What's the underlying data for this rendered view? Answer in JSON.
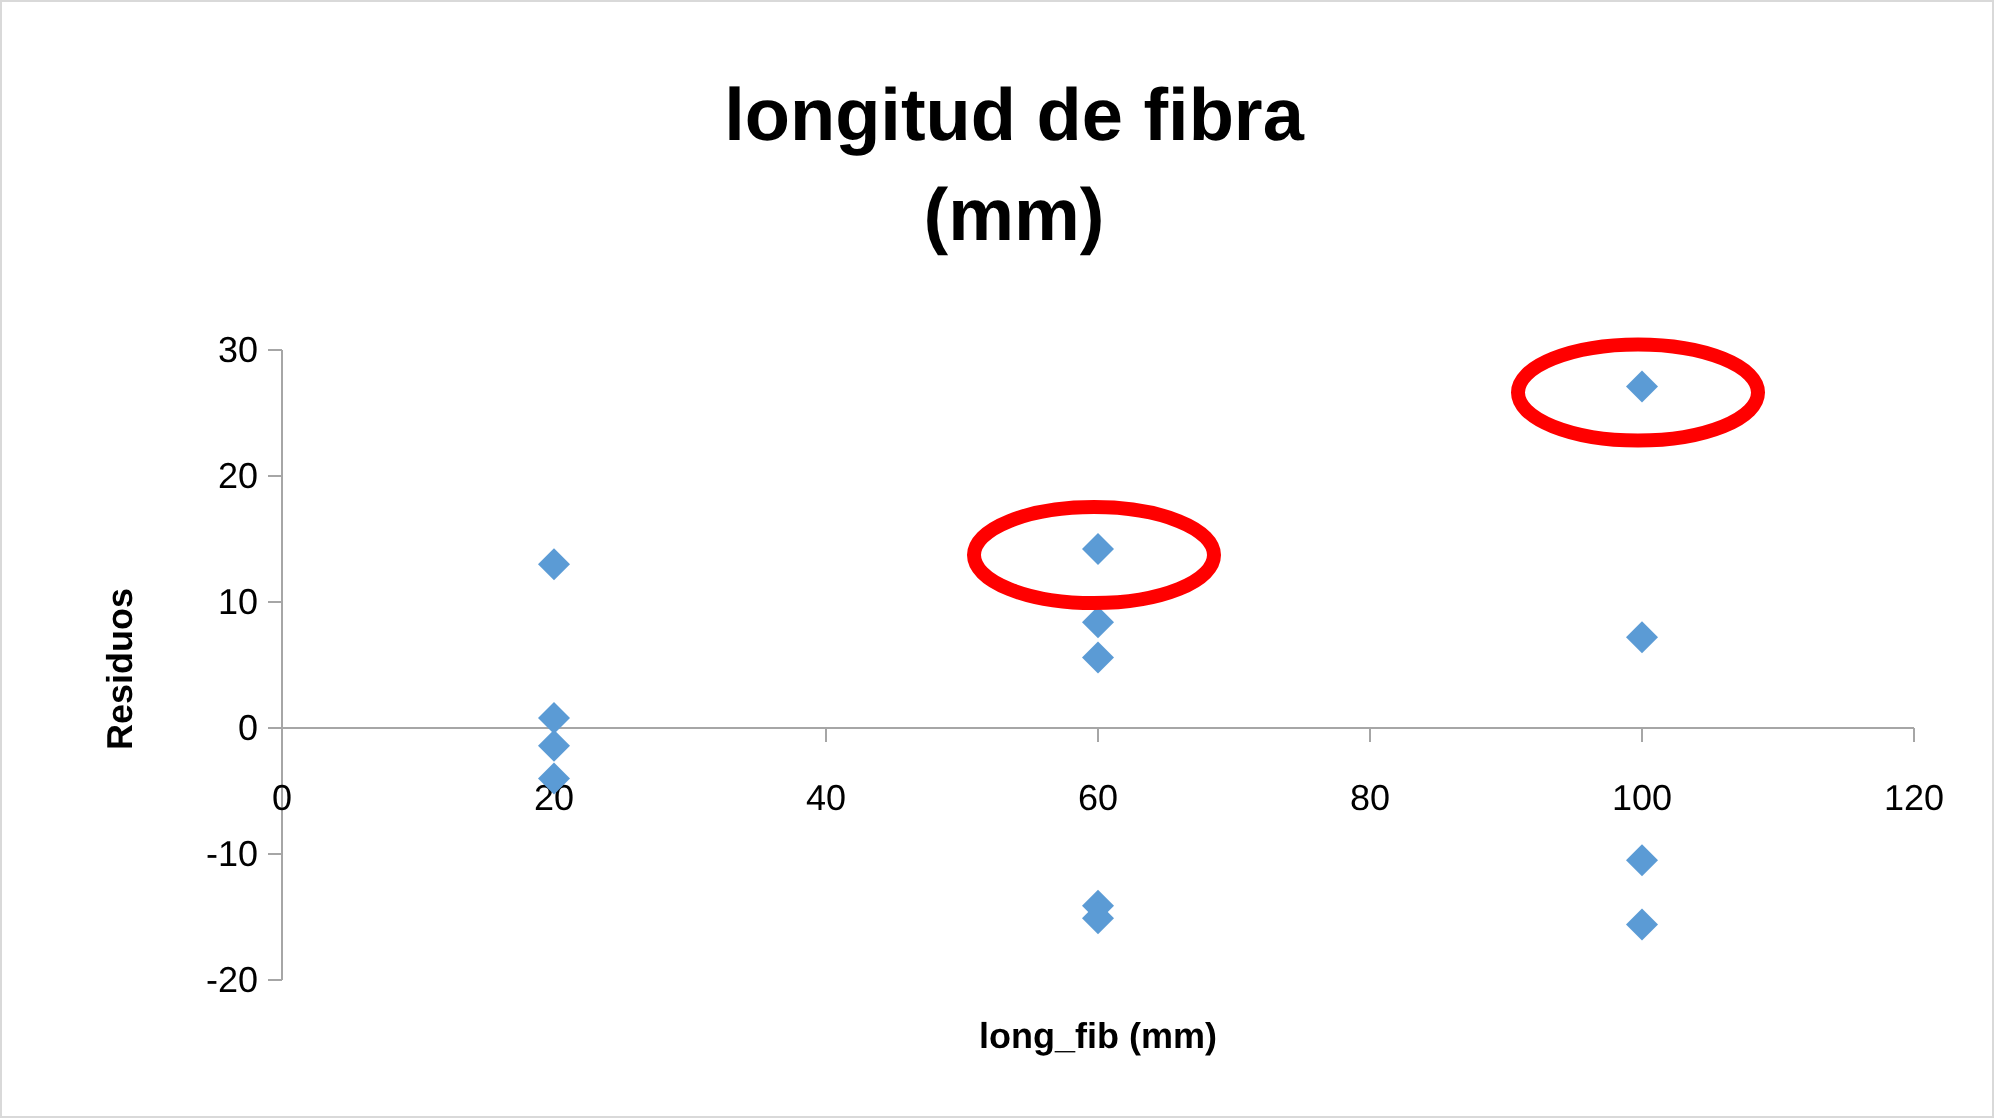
{
  "chart_data": {
    "type": "scatter",
    "title": "longitud de fibra\n(mm)",
    "xlabel": "long_fib (mm)",
    "ylabel": "Residuos",
    "x": [
      20,
      20,
      20,
      20,
      60,
      60,
      60,
      60,
      60,
      100,
      100,
      100,
      100
    ],
    "series": [
      {
        "color": "#5b9bd5",
        "values": [
          13,
          0.8,
          -1.4,
          -4.0,
          14.2,
          8.4,
          5.6,
          -14.1,
          -15.1,
          27.1,
          7.2,
          -10.5,
          -15.6
        ]
      }
    ],
    "xlim": [
      0,
      120
    ],
    "xticks": [
      0,
      20,
      40,
      60,
      80,
      100,
      120
    ],
    "ylim": [
      -20,
      30
    ],
    "yticks": [
      -20,
      -10,
      0,
      10,
      20,
      30
    ],
    "marker": "diamond"
  }
}
